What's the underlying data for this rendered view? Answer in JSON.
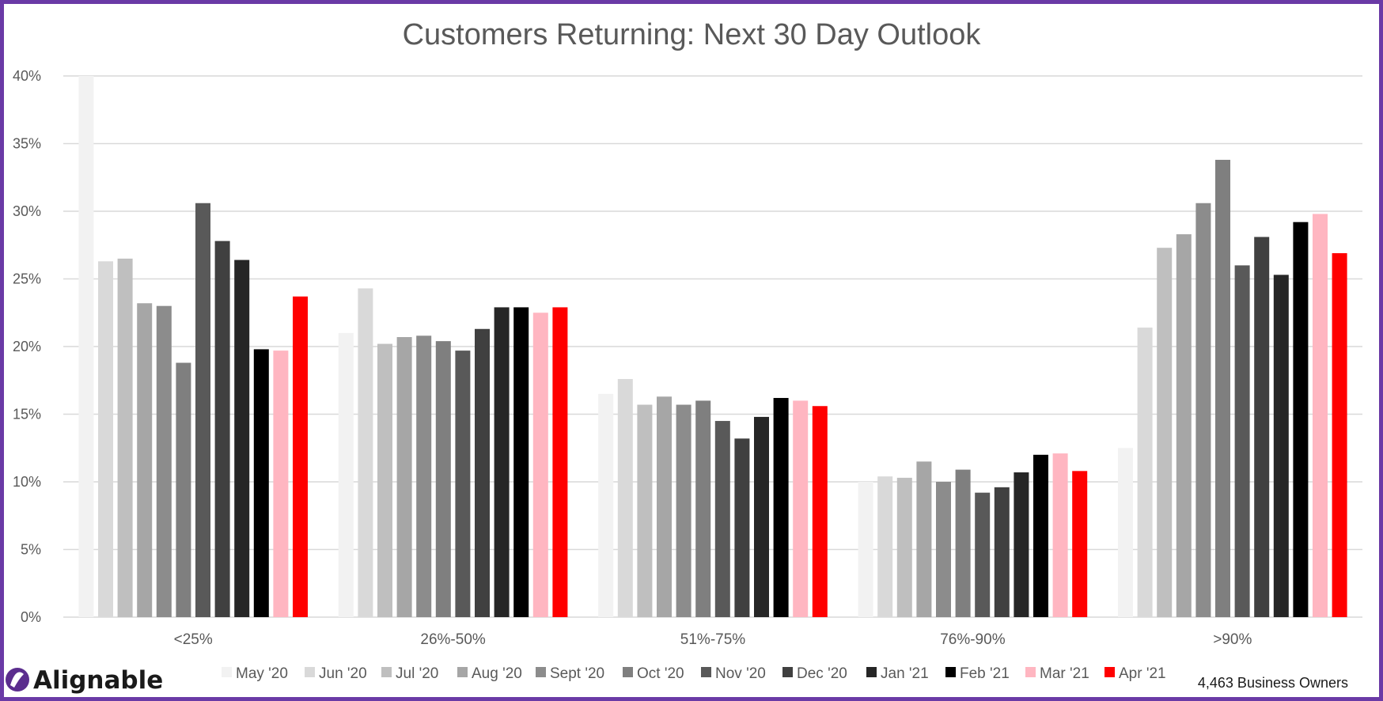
{
  "chart_data": {
    "type": "bar",
    "title": "Customers Returning: Next 30 Day Outlook",
    "categories": [
      "<25%",
      "26%-50%",
      "51%-75%",
      "76%-90%",
      ">90%"
    ],
    "ylim": [
      0,
      40
    ],
    "yticks": [
      0,
      5,
      10,
      15,
      20,
      25,
      30,
      35,
      40
    ],
    "ytick_labels": [
      "0%",
      "5%",
      "10%",
      "15%",
      "20%",
      "25%",
      "30%",
      "35%",
      "40%"
    ],
    "grid": true,
    "legend_position": "bottom",
    "series": [
      {
        "name": "May '20",
        "color": "#f2f2f2",
        "values": [
          40.0,
          21.0,
          16.5,
          10.0,
          12.5
        ]
      },
      {
        "name": "Jun '20",
        "color": "#d9d9d9",
        "values": [
          26.3,
          24.3,
          17.6,
          10.4,
          21.4
        ]
      },
      {
        "name": "Jul '20",
        "color": "#bfbfbf",
        "values": [
          26.5,
          20.2,
          15.7,
          10.3,
          27.3
        ]
      },
      {
        "name": "Aug '20",
        "color": "#a6a6a6",
        "values": [
          23.2,
          20.7,
          16.3,
          11.5,
          28.3
        ]
      },
      {
        "name": "Sept '20",
        "color": "#8c8c8c",
        "values": [
          23.0,
          20.8,
          15.7,
          10.0,
          30.6
        ]
      },
      {
        "name": "Oct '20",
        "color": "#7f7f7f",
        "values": [
          18.8,
          20.4,
          16.0,
          10.9,
          33.8
        ]
      },
      {
        "name": "Nov '20",
        "color": "#595959",
        "values": [
          30.6,
          19.7,
          14.5,
          9.2,
          26.0
        ]
      },
      {
        "name": "Dec '20",
        "color": "#404040",
        "values": [
          27.8,
          21.3,
          13.2,
          9.6,
          28.1
        ]
      },
      {
        "name": "Jan '21",
        "color": "#262626",
        "values": [
          26.4,
          22.9,
          14.8,
          10.7,
          25.3
        ]
      },
      {
        "name": "Feb '21",
        "color": "#000000",
        "values": [
          19.8,
          22.9,
          16.2,
          12.0,
          29.2
        ]
      },
      {
        "name": "Mar '21",
        "color": "#ffb6c1",
        "values": [
          19.7,
          22.5,
          16.0,
          12.1,
          29.8
        ]
      },
      {
        "name": "Apr '21",
        "color": "#ff0000",
        "values": [
          23.7,
          22.9,
          15.6,
          10.8,
          26.9
        ]
      }
    ]
  },
  "branding": {
    "logo_text": "Alignable",
    "logo_color": "#5b2d8e"
  },
  "footnote": "4,463 Business Owners",
  "colors": {
    "frame": "#6a3aa6",
    "grid": "#d9d9d9",
    "axis_text": "#595959"
  }
}
